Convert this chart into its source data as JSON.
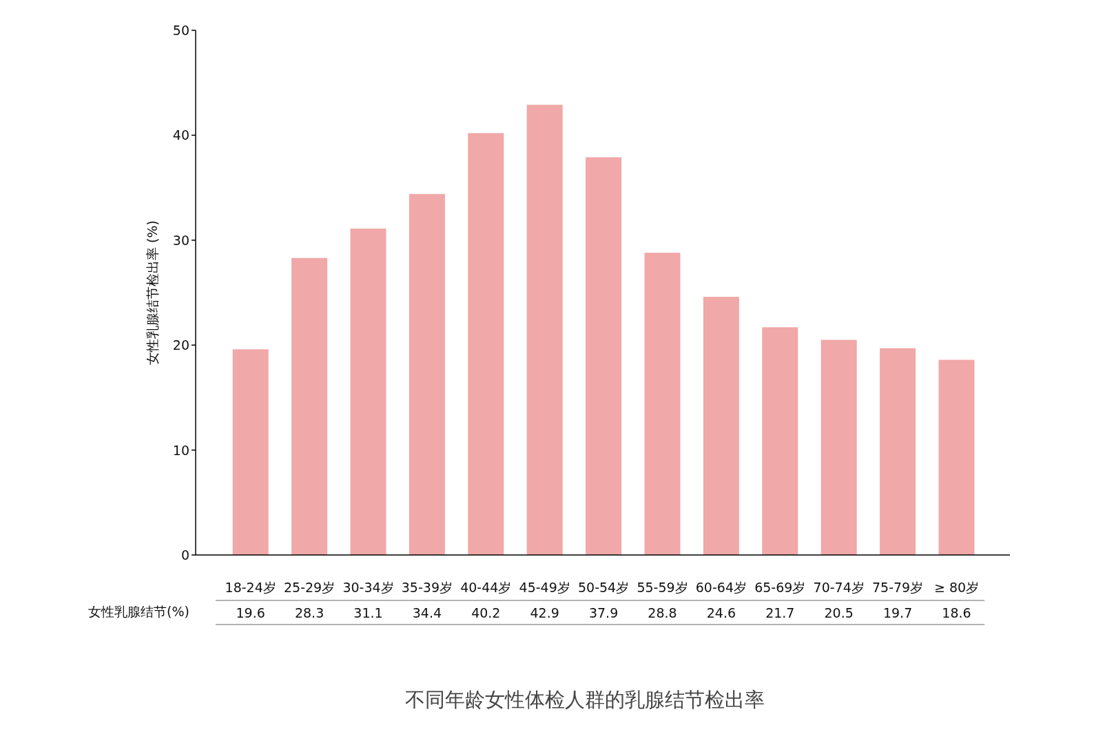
{
  "chart_data": {
    "type": "bar",
    "title": "不同年龄女性体检人群的乳腺结节检出率",
    "ylabel": "女性乳腺结节检出率 (%)",
    "categories": [
      "18-24岁",
      "25-29岁",
      "30-34岁",
      "35-39岁",
      "40-44岁",
      "45-49岁",
      "50-54岁",
      "55-59岁",
      "60-64岁",
      "65-69岁",
      "70-74岁",
      "75-79岁",
      "≥ 80岁"
    ],
    "series": [
      {
        "name": "女性乳腺结节(%)",
        "color": "#f0a8a8",
        "values": [
          19.6,
          28.3,
          31.1,
          34.4,
          40.2,
          42.9,
          37.9,
          28.8,
          24.6,
          21.7,
          20.5,
          19.7,
          18.6
        ]
      }
    ],
    "ylim": [
      0,
      50
    ],
    "yticks": [
      0,
      10,
      20,
      30,
      40,
      50
    ],
    "data_labels": true,
    "grid": false,
    "legend": false
  }
}
